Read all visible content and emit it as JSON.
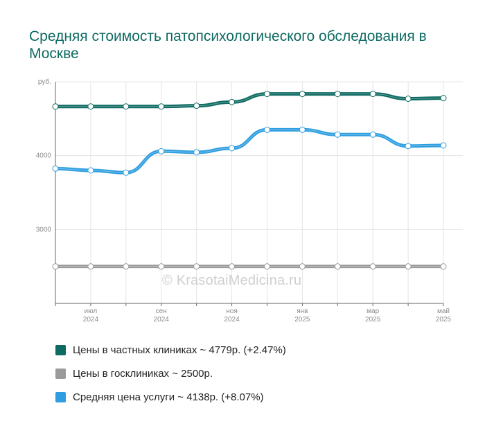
{
  "title": "Средняя стоимость патопсихологического обследования в Москве",
  "watermark": "© KrasotaiMedicina.ru",
  "colors": {
    "private": "#0e6b62",
    "public": "#9a9a9a",
    "average": "#2f9ee0",
    "grid": "#e4e4e4",
    "axis": "#666666"
  },
  "legend": [
    {
      "label": "Цены в частных клиниках ~ 4779р. (+2.47%)",
      "color": "#0e6b62"
    },
    {
      "label": "Цены в госклиниках ~ 2500р.",
      "color": "#9a9a9a"
    },
    {
      "label": "Средняя цена услуги ~ 4138р. (+8.07%)",
      "color": "#2f9ee0"
    }
  ],
  "chart_data": {
    "type": "line",
    "ylabel": "руб.",
    "ylim": [
      2000,
      5000
    ],
    "yticks": [
      3000,
      4000
    ],
    "x": [
      "2024-06",
      "2024-07",
      "2024-08",
      "2024-09",
      "2024-10",
      "2024-11",
      "2024-12",
      "2025-01",
      "2025-02",
      "2025-03",
      "2025-04",
      "2025-05"
    ],
    "xtick_labels": [
      {
        "month": "июл",
        "year": "2024",
        "index": 1
      },
      {
        "month": "сен",
        "year": "2024",
        "index": 3
      },
      {
        "month": "ноя",
        "year": "2024",
        "index": 5
      },
      {
        "month": "янв",
        "year": "2025",
        "index": 7
      },
      {
        "month": "мар",
        "year": "2025",
        "index": 9
      },
      {
        "month": "май",
        "year": "2025",
        "index": 11
      }
    ],
    "series": [
      {
        "name": "Цены в частных клиниках",
        "color": "#0e6b62",
        "values": [
          4665,
          4665,
          4665,
          4665,
          4675,
          4725,
          4835,
          4835,
          4835,
          4835,
          4770,
          4779
        ]
      },
      {
        "name": "Цены в госклиниках",
        "color": "#9a9a9a",
        "values": [
          2500,
          2500,
          2500,
          2500,
          2500,
          2500,
          2500,
          2500,
          2500,
          2500,
          2500,
          2500
        ]
      },
      {
        "name": "Средняя цена услуги",
        "color": "#2f9ee0",
        "values": [
          3825,
          3800,
          3770,
          4060,
          4045,
          4100,
          4350,
          4350,
          4285,
          4285,
          4130,
          4138
        ]
      }
    ]
  }
}
